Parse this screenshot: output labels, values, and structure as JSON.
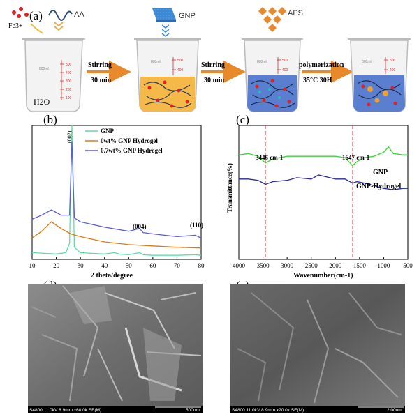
{
  "figure": {
    "panel_a": {
      "letter": "(a)",
      "reagent_aa": "AA",
      "reagent_fe": "Fe3+",
      "reagent_gnp": "GNP",
      "reagent_aps": "APS",
      "water_label": "H2O",
      "beaker_volume_label": "800ml",
      "beaker_scale": [
        "500",
        "400",
        "300",
        "200",
        "100"
      ],
      "step1_top": "Stirring",
      "step1_bottom": "30 min",
      "step2_top": "Stirring",
      "step2_bottom": "30 min",
      "step3_top": "polymerization",
      "step3_bottom": "35°C 30H"
    },
    "panel_b": {
      "letter": "(b)",
      "legend": [
        "GNP",
        "0wt% GNP Hydrogel",
        "0.7wt% GNP Hydrogel"
      ],
      "peak_labels": [
        "(002)",
        "(004)",
        "(110)"
      ],
      "x_ticks": [
        "10",
        "20",
        "30",
        "40",
        "50",
        "60",
        "70",
        "80"
      ],
      "x_label": "2 theta/degree"
    },
    "panel_c": {
      "letter": "(c)",
      "y_label": "Transmittance(%)",
      "x_label": "Wavenumber(cm-1)",
      "x_ticks": [
        "4000",
        "3500",
        "3000",
        "2500",
        "2000",
        "1500",
        "1000",
        "500"
      ],
      "peak_1": "3446 cm-1",
      "peak_2": "1647 cm-1",
      "series_labels": [
        "GNP",
        "GNP-Hydrogel"
      ]
    },
    "panel_d": {
      "letter": "(d)",
      "sem_info": "S4800 11.0kV 8.9mm x60.0k SE(M)",
      "scale_bar": "500nm"
    },
    "panel_e": {
      "letter": "(e)",
      "sem_info": "S4800 11.0kV 8.9mm x20.0k SE(M)",
      "scale_bar": "2.00um"
    }
  },
  "colors": {
    "gnp": "#59e0a6",
    "hydrogel_0": "#e07a10",
    "hydrogel_07": "#5a5de0",
    "ftir_gnp": "#3ad63a",
    "ftir_hydrogel": "#2a2a9a",
    "guide_line": "#dd3333",
    "arrow": "#e8892c"
  },
  "chart_data": [
    {
      "type": "line",
      "panel": "b",
      "title": "",
      "xlabel": "2 theta/degree",
      "ylabel": "",
      "xlim": [
        10,
        80
      ],
      "y_axis_shown": false,
      "grid": false,
      "legend_position": "top-right",
      "series": [
        {
          "name": "GNP",
          "x": [
            10,
            15,
            20,
            24,
            25.5,
            26.5,
            27.5,
            30,
            35,
            40,
            44,
            46,
            50,
            54.5,
            56,
            60,
            70,
            77.5,
            80
          ],
          "y": [
            0.05,
            0.045,
            0.04,
            0.05,
            0.12,
            1.0,
            0.09,
            0.05,
            0.045,
            0.04,
            0.05,
            0.04,
            0.035,
            0.05,
            0.035,
            0.03,
            0.03,
            0.035,
            0.03
          ]
        },
        {
          "name": "0wt% GNP Hydrogel",
          "x": [
            10,
            14,
            18,
            22,
            26,
            30,
            35,
            40,
            50,
            60,
            70,
            80
          ],
          "y": [
            0.16,
            0.21,
            0.28,
            0.23,
            0.19,
            0.17,
            0.15,
            0.13,
            0.11,
            0.1,
            0.09,
            0.085
          ]
        },
        {
          "name": "0.7wt% GNP Hydrogel",
          "x": [
            10,
            14,
            18,
            22,
            25.5,
            26.5,
            27.5,
            30,
            40,
            50,
            54.5,
            56,
            60,
            70,
            77.5,
            80
          ],
          "y": [
            0.3,
            0.33,
            0.37,
            0.33,
            0.33,
            0.88,
            0.31,
            0.28,
            0.24,
            0.21,
            0.23,
            0.2,
            0.19,
            0.17,
            0.18,
            0.16
          ]
        }
      ]
    },
    {
      "type": "line",
      "panel": "c",
      "title": "",
      "xlabel": "Wavenumber(cm-1)",
      "ylabel": "Transmittance(%)",
      "xlim": [
        4000,
        500
      ],
      "x_reversed": true,
      "grid": false,
      "legend_position": "right",
      "series": [
        {
          "name": "GNP",
          "x": [
            4000,
            3800,
            3600,
            3446,
            3300,
            3000,
            2500,
            2000,
            1800,
            1647,
            1550,
            1400,
            1200,
            1000,
            900,
            800,
            600,
            500
          ],
          "y": [
            0.78,
            0.79,
            0.77,
            0.72,
            0.75,
            0.77,
            0.77,
            0.77,
            0.76,
            0.7,
            0.73,
            0.76,
            0.77,
            0.8,
            0.84,
            0.79,
            0.78,
            0.78
          ]
        },
        {
          "name": "GNP-Hydrogel",
          "x": [
            4000,
            3800,
            3600,
            3446,
            3300,
            3000,
            2800,
            2500,
            2350,
            2000,
            1800,
            1647,
            1550,
            1400,
            1200,
            1000,
            800,
            600,
            500
          ],
          "y": [
            0.6,
            0.6,
            0.59,
            0.56,
            0.58,
            0.59,
            0.61,
            0.6,
            0.63,
            0.6,
            0.6,
            0.57,
            0.58,
            0.57,
            0.55,
            0.53,
            0.52,
            0.53,
            0.53
          ]
        }
      ]
    }
  ]
}
